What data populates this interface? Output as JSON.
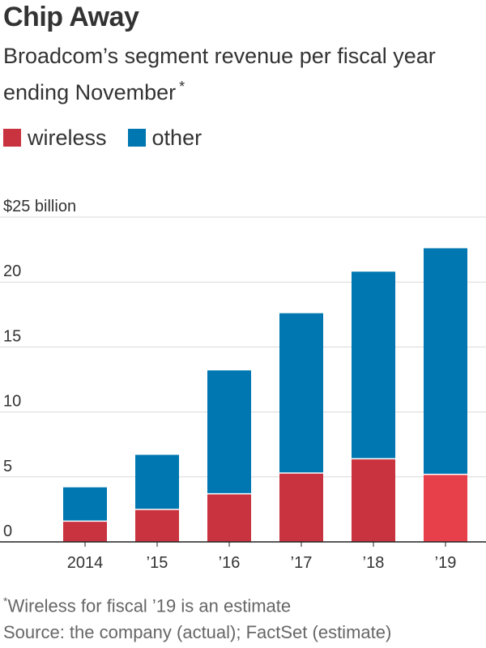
{
  "header": {
    "title": "Chip Away",
    "subtitle": "Broadcom’s segment revenue per fiscal year ending November",
    "subtitle_mark": "*"
  },
  "legend": [
    {
      "label": "wireless",
      "color": "#c9333f"
    },
    {
      "label": "other",
      "color": "#0077b0"
    }
  ],
  "colors": {
    "wireless": "#c9333f",
    "wireless_estimate": "#e8404a",
    "other": "#0077b0",
    "grid": "#d9d9d9",
    "axis": "#222222"
  },
  "chart_data": {
    "type": "bar",
    "stacked": true,
    "categories": [
      "2014",
      "’15",
      "’16",
      "’17",
      "’18",
      "’19"
    ],
    "series": [
      {
        "name": "wireless",
        "values": [
          1.6,
          2.5,
          3.7,
          5.3,
          6.4,
          5.2
        ]
      },
      {
        "name": "other",
        "values": [
          2.6,
          4.2,
          9.5,
          12.3,
          14.4,
          17.4
        ]
      }
    ],
    "ylim": [
      0,
      25
    ],
    "yticks": [
      {
        "value": 0,
        "label": "0"
      },
      {
        "value": 5,
        "label": "5"
      },
      {
        "value": 10,
        "label": "10"
      },
      {
        "value": 15,
        "label": "15"
      },
      {
        "value": 20,
        "label": "20"
      },
      {
        "value": 25,
        "label": "$25 billion"
      }
    ],
    "estimate_index": 5,
    "grid": true
  },
  "notes": {
    "footnote_mark": "*",
    "footnote": "Wireless for fiscal ’19 is an estimate",
    "source": "Source: the company (actual); FactSet (estimate)"
  }
}
